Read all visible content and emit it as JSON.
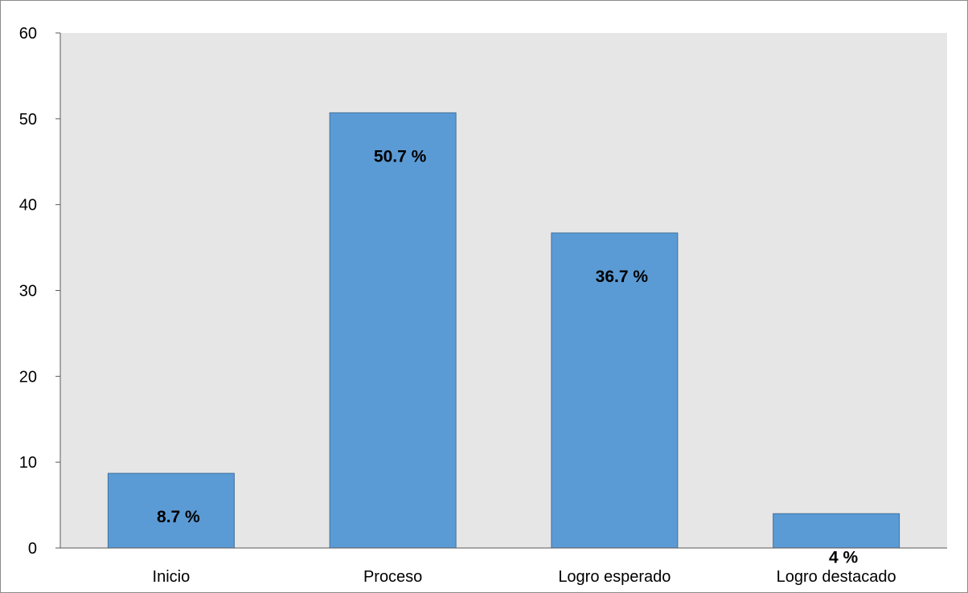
{
  "chart_data": {
    "type": "bar",
    "categories": [
      "Inicio",
      "Proceso",
      "Logro esperado",
      "Logro destacado"
    ],
    "values": [
      8.7,
      50.7,
      36.7,
      4
    ],
    "data_labels": [
      "8.7 %",
      "50.7 %",
      "36.7 %",
      "4 %"
    ],
    "ylim": [
      0,
      60
    ],
    "yticks": [
      0,
      10,
      20,
      30,
      40,
      50,
      60
    ],
    "title": "",
    "xlabel": "",
    "ylabel": "",
    "grid": false,
    "colors": {
      "bar": "#5b9bd5",
      "bar_edge": "#41719c",
      "plot_bg": "#e7e6e6"
    }
  }
}
